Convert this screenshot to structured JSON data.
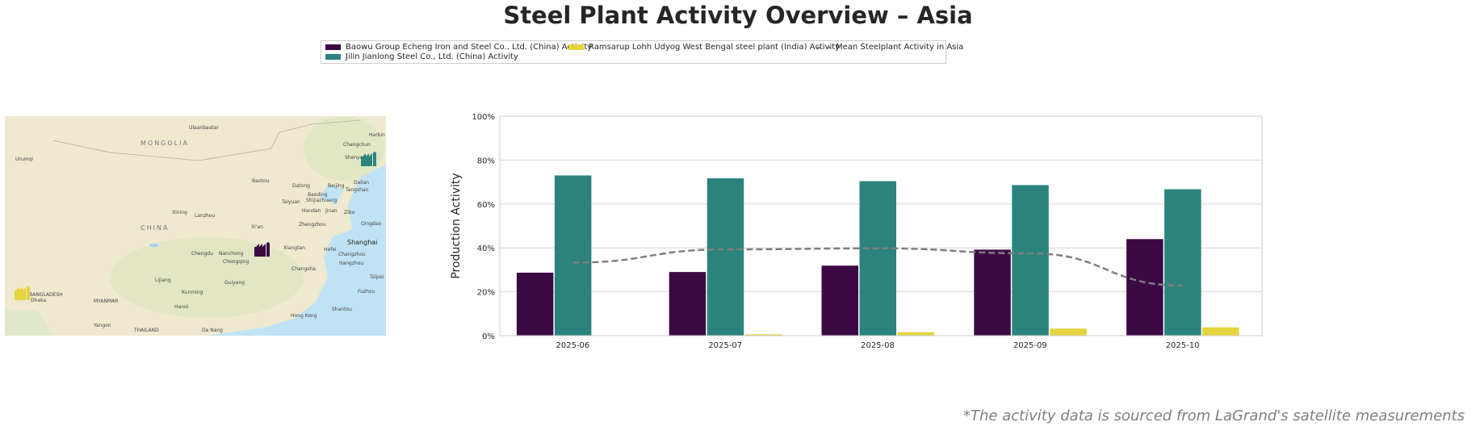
{
  "title": "Steel Plant Activity Overview – Asia",
  "legend": [
    {
      "label": "Baowu Group Echeng Iron and Steel Co., Ltd. (China) Activity",
      "color": "#3b0a45"
    },
    {
      "label": "Jilin Jianlong Steel Co., Ltd. (China) Activity",
      "color": "#2c837e"
    },
    {
      "label": "Ramsarup Lohh Udyog West Bengal steel plant (India) Activity",
      "color": "#e4d43e"
    },
    {
      "label": "Mean Steelplant Activity in Asia",
      "color": "#7f7f7f"
    }
  ],
  "map": {
    "labels": [
      "MONGOLIA",
      "CHINA",
      "Ulaanbaatar",
      "Urumqi",
      "Baotou",
      "Datong",
      "Beijing",
      "Tangshan",
      "Baoding",
      "Taiyuan",
      "Shijiazhuang",
      "Handan",
      "Jinan",
      "Zibo",
      "Lanzhou",
      "Xining",
      "Zhengzhou",
      "Xi'an",
      "Chengdu",
      "Nanchong",
      "Chongqing",
      "Xiangtan",
      "Changsha",
      "Hefei",
      "Changzhou",
      "Hangzhou",
      "Shanghai",
      "Guiyang",
      "Kunming",
      "Lijiang",
      "Fuzhou",
      "Shantou",
      "Hong Kong",
      "Harbin",
      "Changchun",
      "Shenyang",
      "Dalian",
      "Qingdao",
      "Dhaka",
      "BANGLADESH",
      "MYANMAR",
      "Hanoi",
      "THAILAND",
      "Yangon",
      "Da Nang",
      "Taipei"
    ],
    "markers": [
      {
        "plant": "Jilin Jianlong Steel Co., Ltd.",
        "color": "#2c837e",
        "icon": "factory-icon"
      },
      {
        "plant": "Baowu Group Echeng Iron and Steel Co., Ltd.",
        "color": "#3b0a45",
        "icon": "factory-icon"
      },
      {
        "plant": "Ramsarup Lohh Udyog West Bengal steel plant",
        "color": "#e4d43e",
        "icon": "factory-icon"
      }
    ]
  },
  "chart_data": {
    "type": "bar",
    "categories": [
      "2025-06",
      "2025-07",
      "2025-08",
      "2025-09",
      "2025-10"
    ],
    "series": [
      {
        "name": "Baowu Group Echeng Iron and Steel Co., Ltd. (China) Activity",
        "values": [
          28.7,
          29.0,
          31.9,
          39.2,
          44.0
        ],
        "color": "#3b0a45"
      },
      {
        "name": "Jilin Jianlong Steel Co., Ltd. (China) Activity",
        "values": [
          73.0,
          71.7,
          70.4,
          68.6,
          66.7
        ],
        "color": "#2c837e"
      },
      {
        "name": "Ramsarup Lohh Udyog West Bengal steel plant (India) Activity",
        "values": [
          0.0,
          0.6,
          1.6,
          3.2,
          3.8
        ],
        "color": "#e4d43e"
      }
    ],
    "line": {
      "name": "Mean Steelplant Activity in Asia",
      "values": [
        33.3,
        39.3,
        39.8,
        37.5,
        22.8
      ],
      "color": "#7f7f7f",
      "style": "dashed"
    },
    "ylabel": "Production Activity",
    "yticks": [
      "0%",
      "20%",
      "40%",
      "60%",
      "80%",
      "100%"
    ],
    "ylim": [
      0,
      100
    ],
    "grid": true
  },
  "source_note": "*The activity data is sourced from LaGrand's satellite measurements"
}
